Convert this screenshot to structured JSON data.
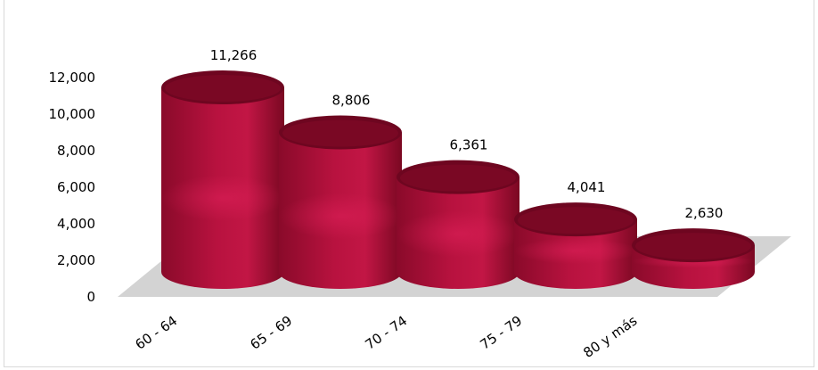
{
  "chart_data": {
    "type": "bar",
    "title": "",
    "categories": [
      "60 - 64",
      "65 - 69",
      "70 - 74",
      "75 - 79",
      "80 y más"
    ],
    "values": [
      11266,
      8806,
      6361,
      4041,
      2630
    ],
    "data_labels": [
      "11,266",
      "8,806",
      "6,361",
      "4,041",
      "2,630"
    ],
    "yticks": [
      "0",
      "2,000",
      "4,000",
      "6,000",
      "8,000",
      "10,000",
      "12,000"
    ],
    "ylim": [
      0,
      12000
    ],
    "xlabel": "",
    "ylabel": "",
    "grid": false,
    "legend": "none",
    "style": "3d-cylinder",
    "colors": {
      "bar": "#b0103a",
      "bar_dark": "#7a0822",
      "bar_light": "#cc1a4a",
      "floor": "#d3d3d3"
    }
  }
}
